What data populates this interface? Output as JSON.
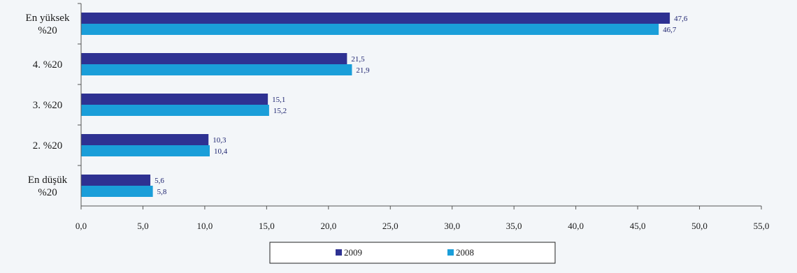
{
  "chart_data": {
    "type": "bar",
    "orientation": "horizontal",
    "categories": [
      "En yüksek\n%20",
      "4. %20",
      "3. %20",
      "2. %20",
      "En düşük\n%20"
    ],
    "series": [
      {
        "name": "2009",
        "color": "#2e3192",
        "values": [
          47.6,
          21.5,
          15.1,
          10.3,
          5.6
        ],
        "labels": [
          "47,6",
          "21,5",
          "15,1",
          "10,3",
          "5,6"
        ]
      },
      {
        "name": "2008",
        "color": "#1a9ed9",
        "values": [
          46.7,
          21.9,
          15.2,
          10.4,
          5.8
        ],
        "labels": [
          "46,7",
          "21,9",
          "15,2",
          "10,4",
          "5,8"
        ]
      }
    ],
    "xlim": [
      0,
      55
    ],
    "xticks": [
      0,
      5,
      10,
      15,
      20,
      25,
      30,
      35,
      40,
      45,
      50,
      55
    ],
    "xtick_labels": [
      "0,0",
      "5,0",
      "10,0",
      "15,0",
      "20,0",
      "25,0",
      "30,0",
      "35,0",
      "40,0",
      "45,0",
      "50,0",
      "55,0"
    ],
    "title": "",
    "xlabel": "",
    "ylabel": "",
    "grid": false,
    "legend": "bottom-center"
  }
}
